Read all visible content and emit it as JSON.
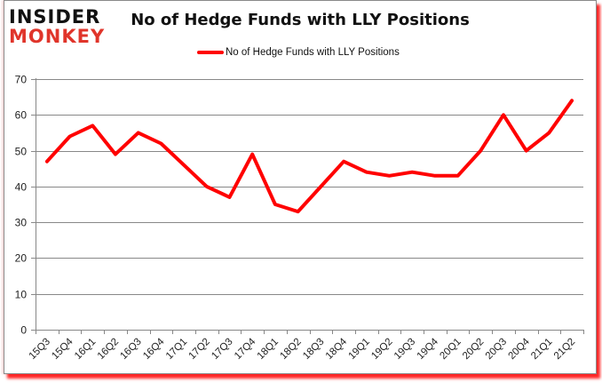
{
  "logo": {
    "line1": "INSIDER",
    "line2": "MONKEY"
  },
  "colors": {
    "series": "#ff0000",
    "logo_accent": "#e0352b",
    "grid": "#888888",
    "frame_shadow": "#ff0000"
  },
  "chart_data": {
    "type": "line",
    "title": "No of Hedge Funds with LLY Positions",
    "xlabel": "",
    "ylabel": "",
    "ylim": [
      0,
      70
    ],
    "yticks": [
      0,
      10,
      20,
      30,
      40,
      50,
      60,
      70
    ],
    "grid": true,
    "legend_position": "top",
    "categories": [
      "15Q3",
      "15Q4",
      "16Q1",
      "16Q2",
      "16Q3",
      "16Q4",
      "17Q1",
      "17Q2",
      "17Q3",
      "17Q4",
      "18Q1",
      "18Q2",
      "18Q3",
      "18Q4",
      "19Q1",
      "19Q2",
      "19Q3",
      "19Q4",
      "20Q1",
      "20Q2",
      "20Q3",
      "20Q4",
      "21Q1",
      "21Q2"
    ],
    "series": [
      {
        "name": "No of Hedge Funds with LLY Positions",
        "color": "#ff0000",
        "values": [
          47,
          54,
          57,
          49,
          55,
          52,
          46,
          40,
          37,
          49,
          35,
          33,
          40,
          47,
          44,
          43,
          44,
          43,
          43,
          50,
          60,
          50,
          55,
          64
        ]
      }
    ]
  }
}
